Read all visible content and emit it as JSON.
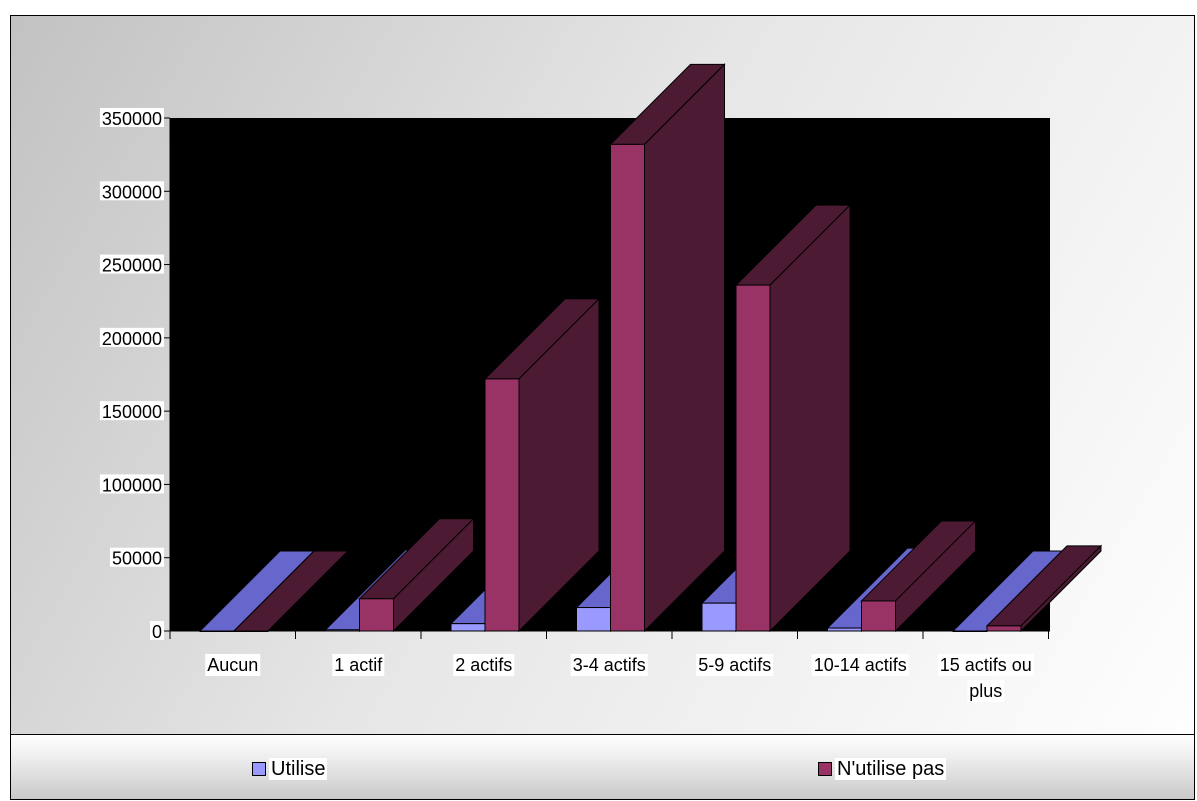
{
  "chart_data": {
    "type": "bar",
    "categories": [
      "Aucun",
      "1 actif",
      "2 actifs",
      "3-4 actifs",
      "5-9 actifs",
      "10-14 actifs",
      "15 actifs ou plus"
    ],
    "category_lines": [
      [
        "Aucun"
      ],
      [
        "1 actif"
      ],
      [
        "2 actifs"
      ],
      [
        "3-4 actifs"
      ],
      [
        "5-9 actifs"
      ],
      [
        "10-14 actifs"
      ],
      [
        "15 actifs ou",
        "plus"
      ]
    ],
    "series": [
      {
        "name": "Utilise",
        "values": [
          0,
          800,
          5000,
          16000,
          19000,
          2000,
          0
        ],
        "color": "#9999ff",
        "side_color": "#6666cc"
      },
      {
        "name": "N'utilise pas",
        "values": [
          0,
          22000,
          172000,
          332000,
          236000,
          20500,
          3500
        ],
        "color": "#993366",
        "side_color": "#4d1a33"
      }
    ],
    "ylim": [
      0,
      350000
    ],
    "yticks": [
      0,
      50000,
      100000,
      150000,
      200000,
      250000,
      300000,
      350000
    ],
    "ytick_labels": [
      "0",
      "50000",
      "100000",
      "150000",
      "200000",
      "250000",
      "300000",
      "350000"
    ],
    "plot_background": "#000000",
    "legend_position": "bottom",
    "title": "",
    "xlabel": "",
    "ylabel": ""
  },
  "legend": {
    "utilise_label": "Utilise",
    "nutilise_label": "N'utilise pas",
    "utilise_color": "#9999ff",
    "nutilise_color": "#993366"
  }
}
